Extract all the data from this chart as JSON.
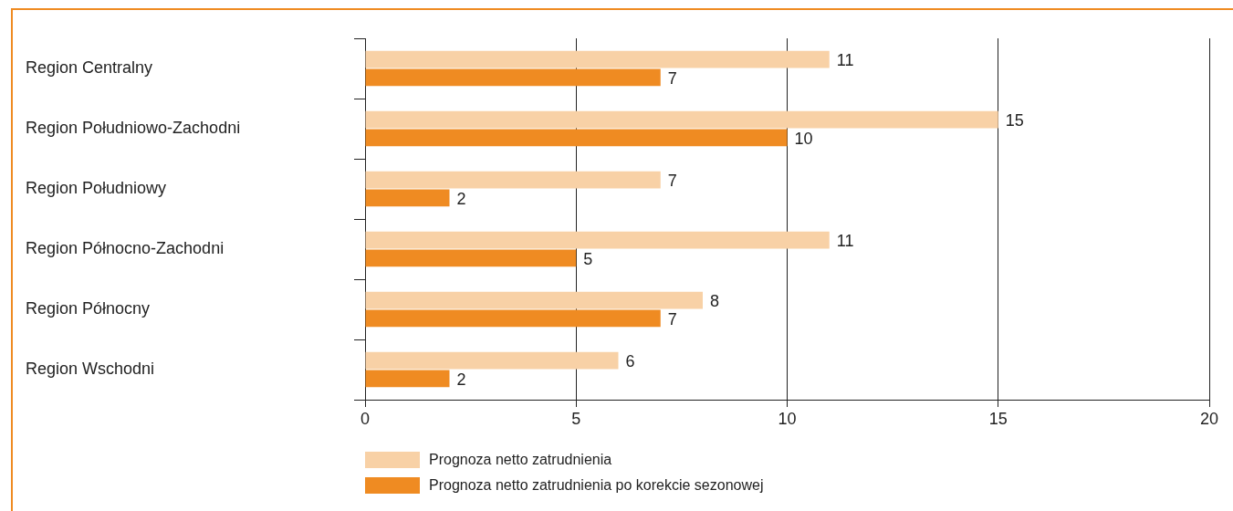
{
  "chart_data": {
    "type": "bar",
    "orientation": "horizontal",
    "categories": [
      "Region Centralny",
      "Region Południowo-Zachodni",
      "Region Południowy",
      "Region Północno-Zachodni",
      "Region Północny",
      "Region Wschodni"
    ],
    "series": [
      {
        "name": "Prognoza netto zatrudnienia",
        "color": "#f8d1a6",
        "values": [
          11,
          15,
          7,
          11,
          8,
          6
        ]
      },
      {
        "name": "Prognoza netto zatrudnienia po korekcie sezonowej",
        "color": "#ef8b22",
        "values": [
          7,
          10,
          2,
          5,
          7,
          2
        ]
      }
    ],
    "xlim": [
      0,
      20
    ],
    "xticks": [
      0,
      5,
      10,
      15,
      20
    ],
    "grid": "x",
    "legend": "bottom",
    "data_labels": true
  }
}
